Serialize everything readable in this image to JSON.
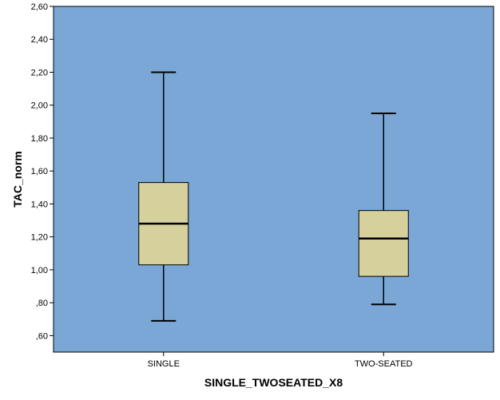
{
  "chart_data": {
    "type": "boxplot",
    "xlabel": "SINGLE_TWOSEATED_X8",
    "ylabel": "TAC_norm",
    "ylim": [
      0.5,
      2.6
    ],
    "y_ticks": [
      0.6,
      0.8,
      1.0,
      1.2,
      1.4,
      1.6,
      1.8,
      2.0,
      2.2,
      2.4,
      2.6
    ],
    "y_tick_labels": [
      ",60",
      ",80",
      "1,00",
      "1,20",
      "1,40",
      "1,60",
      "1,80",
      "2,00",
      "2,20",
      "2,40",
      "2,60"
    ],
    "categories": [
      "SINGLE",
      "TWO-SEATED"
    ],
    "boxes": [
      {
        "category": "SINGLE",
        "min": 0.69,
        "q1": 1.03,
        "median": 1.28,
        "q3": 1.53,
        "max": 2.2
      },
      {
        "category": "TWO-SEATED",
        "min": 0.79,
        "q1": 0.96,
        "median": 1.19,
        "q3": 1.36,
        "max": 1.95
      }
    ],
    "grid": false,
    "colors": {
      "plot_background": "#7AA7D6",
      "box_fill": "#D6D09D",
      "stroke": "#000000"
    }
  }
}
